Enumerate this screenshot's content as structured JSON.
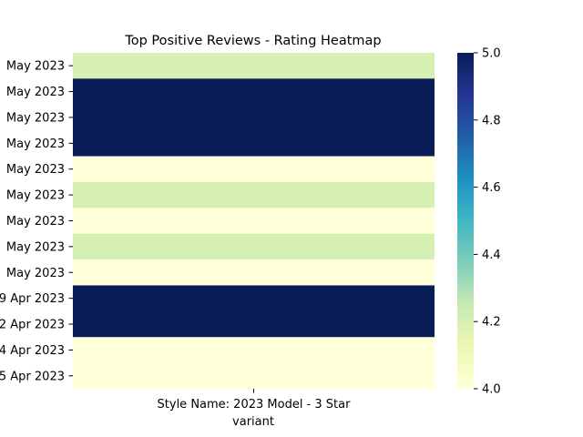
{
  "chart_data": {
    "type": "heatmap",
    "title": "Top Positive Reviews - Rating Heatmap",
    "xlabel": "variant",
    "ylabel": "",
    "x_categories": [
      "Style Name: 2023 Model - 3 Star"
    ],
    "y_categories": [
      "May 2023",
      "May 2023",
      "May 2023",
      "May 2023",
      "May 2023",
      "May 2023",
      "May 2023",
      "May 2023",
      "May 2023",
      "9 Apr 2023",
      "2 Apr 2023",
      "4 Apr 2023",
      "5 Apr 2023"
    ],
    "values": [
      4.2,
      5.0,
      5.0,
      5.0,
      4.0,
      4.2,
      4.0,
      4.2,
      4.0,
      5.0,
      5.0,
      4.0,
      4.0
    ],
    "colorbar": {
      "range": [
        4.0,
        5.0
      ],
      "ticks": [
        "4.0",
        "4.2",
        "4.4",
        "4.6",
        "4.8",
        "5.0"
      ],
      "colormap": "YlGnBu",
      "stops": [
        "#ffffd9",
        "#edf8b1",
        "#c7e9b4",
        "#7fcdbb",
        "#41b6c4",
        "#1d91c0",
        "#225ea8",
        "#253494",
        "#081d58"
      ]
    }
  }
}
